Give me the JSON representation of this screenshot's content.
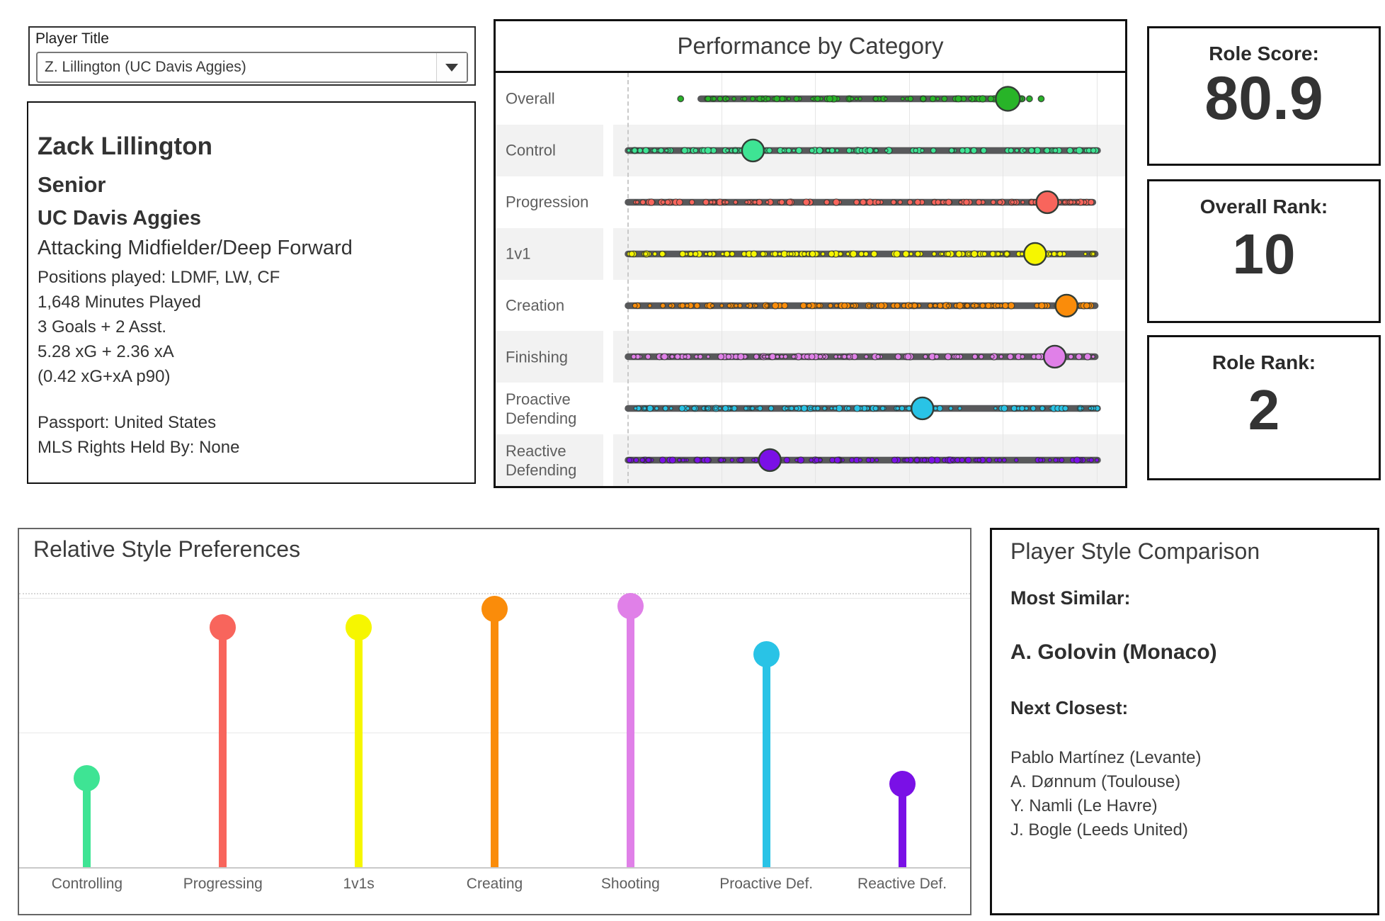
{
  "player_selector": {
    "label": "Player Title",
    "value": "Z. Lillington (UC Davis Aggies)"
  },
  "player_info": {
    "name": "Zack Lillington",
    "class_year": "Senior",
    "team": "UC Davis Aggies",
    "role": "Attacking Midfielder/Deep Forward",
    "positions": "Positions played: LDMF, LW, CF",
    "minutes": "1,648 Minutes Played",
    "goals_assists": "3 Goals + 2 Asst.",
    "xg_xa": "5.28 xG + 2.36 xA",
    "xg_xa_p90": "(0.42 xG+xA p90)",
    "passport": "Passport: United States",
    "mls_rights": "MLS Rights Held By: None"
  },
  "stats": {
    "role_score": {
      "label": "Role Score:",
      "value": "80.9"
    },
    "overall_rank": {
      "label": "Overall Rank:",
      "value": "10"
    },
    "role_rank": {
      "label": "Role Rank:",
      "value": "2"
    }
  },
  "chart_data": [
    {
      "type": "scatter",
      "subtype": "strip-distribution-dot",
      "title": "Performance by Category",
      "categories": [
        "Overall",
        "Control",
        "Progression",
        "1v1",
        "Creation",
        "Finishing",
        "Proactive Defending",
        "Reactive Defending"
      ],
      "values": [
        80.9,
        26.6,
        89.3,
        86.7,
        93.4,
        90.9,
        62.7,
        30.2
      ],
      "spans": [
        [
          15.5,
          84
        ],
        [
          0,
          100
        ],
        [
          0,
          99
        ],
        [
          0,
          99.5
        ],
        [
          0,
          99.5
        ],
        [
          0,
          99.5
        ],
        [
          0,
          100
        ],
        [
          0,
          100
        ]
      ],
      "overall_outlier_dots": [
        11.2,
        85.5,
        88
      ],
      "colors": [
        "#28b428",
        "#3ee494",
        "#f8655c",
        "#f6f600",
        "#fa8c0a",
        "#e080e8",
        "#29c3e6",
        "#7a10e6"
      ],
      "xlim": [
        0,
        100
      ],
      "gridline_step": 20,
      "grid": "vertical-light",
      "zero_line": "dashed",
      "row_stripe_color": "#f2f2f2",
      "strip_line_color": "#58595b",
      "legend": "none"
    },
    {
      "type": "bar",
      "subtype": "lollipop",
      "title": "Relative Style Preferences",
      "categories": [
        "Controlling",
        "Progressing",
        "1v1s",
        "Creating",
        "Shooting",
        "Proactive Def.",
        "Reactive Def."
      ],
      "values": [
        0.33,
        0.89,
        0.89,
        0.96,
        0.97,
        0.79,
        0.31
      ],
      "colors": [
        "#3ee494",
        "#f8655c",
        "#f6f600",
        "#fa8c0a",
        "#e080e8",
        "#29c3e6",
        "#7a10e6"
      ],
      "ylim": [
        0,
        1
      ],
      "grid": "horizontal-light",
      "legend": "none"
    }
  ],
  "style_comparison": {
    "title": "Player Style Comparison",
    "most_similar_label": "Most Similar:",
    "most_similar": "A. Golovin (Monaco)",
    "next_closest_label": "Next Closest:",
    "next_closest": [
      "Pablo Martínez (Levante)",
      "A. Dønnum (Toulouse)",
      "Y. Namli (Le Havre)",
      "J. Bogle (Leeds United)"
    ]
  }
}
